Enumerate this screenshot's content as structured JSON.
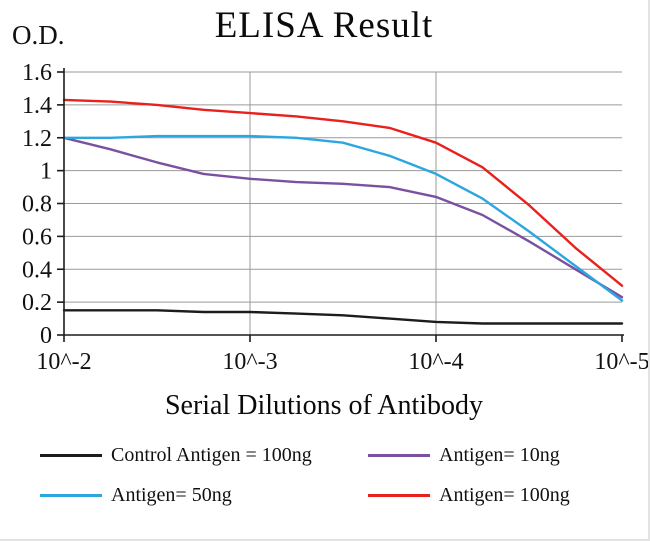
{
  "chart_data": {
    "type": "line",
    "title": "ELISA Result",
    "ylabel": "O.D.",
    "xlabel": "Serial Dilutions of Antibody",
    "ylim": [
      0,
      1.6
    ],
    "grid": true,
    "y_ticks": [
      0,
      0.2,
      0.4,
      0.6,
      0.8,
      1,
      1.2,
      1.4,
      1.6
    ],
    "y_tick_labels": [
      "0",
      "0.2",
      "0.4",
      "0.6",
      "0.8",
      "1",
      "1.2",
      "1.4",
      "1.6"
    ],
    "x_tick_positions": [
      0,
      1,
      2,
      3
    ],
    "x_tick_labels": [
      "10^-2",
      "10^-3",
      "10^-4",
      "10^-5"
    ],
    "vertical_gridline_positions": [
      1,
      2
    ],
    "x": [
      0,
      0.25,
      0.5,
      0.75,
      1,
      1.25,
      1.5,
      1.75,
      2,
      2.25,
      2.5,
      2.75,
      3
    ],
    "series": [
      {
        "id": "control-antigen-100ng",
        "name": "Control Antigen = 100ng",
        "color": "#1c1c1c",
        "values": [
          0.15,
          0.15,
          0.15,
          0.14,
          0.14,
          0.13,
          0.12,
          0.1,
          0.08,
          0.07,
          0.07,
          0.07,
          0.07
        ]
      },
      {
        "id": "antigen-10ng",
        "name": "Antigen= 10ng",
        "color": "#7a51a1",
        "values": [
          1.2,
          1.13,
          1.05,
          0.98,
          0.95,
          0.93,
          0.92,
          0.9,
          0.84,
          0.73,
          0.57,
          0.4,
          0.23
        ]
      },
      {
        "id": "antigen-50ng",
        "name": "Antigen= 50ng",
        "color": "#2ca6e0",
        "values": [
          1.2,
          1.2,
          1.21,
          1.21,
          1.21,
          1.2,
          1.17,
          1.09,
          0.98,
          0.83,
          0.63,
          0.42,
          0.21
        ]
      },
      {
        "id": "antigen-100ng",
        "name": "Antigen= 100ng",
        "color": "#e8211d",
        "values": [
          1.43,
          1.42,
          1.4,
          1.37,
          1.35,
          1.33,
          1.3,
          1.26,
          1.17,
          1.02,
          0.79,
          0.53,
          0.3
        ]
      }
    ],
    "legend_rows": [
      [
        0,
        1
      ],
      [
        2,
        3
      ]
    ],
    "colors": {
      "axis": "#1c1c1c",
      "gridline": "#9a9a9a"
    }
  }
}
